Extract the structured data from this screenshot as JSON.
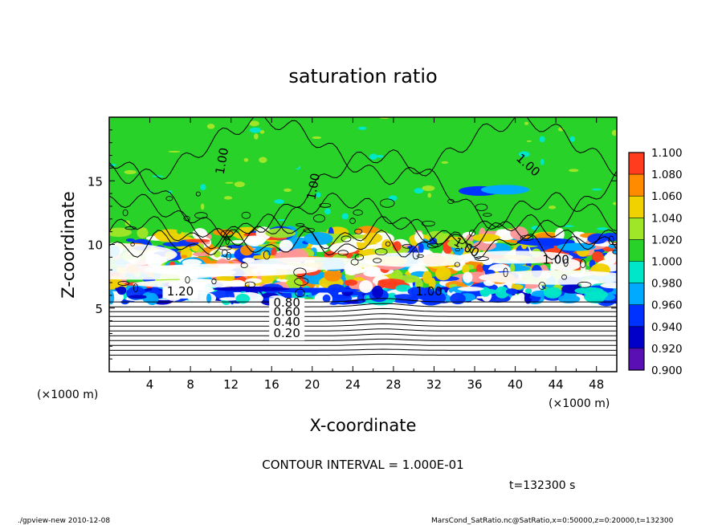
{
  "chart_data": {
    "type": "heatmap",
    "title": "saturation ratio",
    "xlabel": "X-coordinate",
    "ylabel": "Z-coordinate",
    "x_unit": "(×1000 m)",
    "y_unit": "(×1000 m)",
    "xlim": [
      0,
      50
    ],
    "ylim": [
      0,
      20
    ],
    "x_ticks": [
      "4",
      "8",
      "12",
      "16",
      "20",
      "24",
      "28",
      "32",
      "36",
      "40",
      "44",
      "48"
    ],
    "y_ticks": [
      "5",
      "10",
      "15"
    ],
    "colorbar": {
      "levels": [
        "0.900",
        "0.920",
        "0.940",
        "0.960",
        "0.980",
        "1.000",
        "1.020",
        "1.040",
        "1.060",
        "1.080",
        "1.100"
      ],
      "colors": [
        "#5a0fb4",
        "#0000c8",
        "#0032ff",
        "#00aaff",
        "#00e6c8",
        "#28d228",
        "#a0e628",
        "#f0d200",
        "#ff8c00",
        "#ff3c1e",
        "#ff9696"
      ]
    },
    "contour_labels": [
      "1.00",
      "1.00",
      "1.00",
      "1.00",
      "1.00",
      "1.00",
      "1.20",
      "0.80",
      "0.60",
      "0.40",
      "0.20"
    ],
    "contour_interval_text": "CONTOUR INTERVAL = 1.000E-01",
    "time_text": "t=132300 s",
    "footer_left": "./gpview-new   2010-12-08",
    "footer_right": "MarsCond_SatRatio.nc@SatRatio,x=0:50000,z=0:20000,t=132300"
  }
}
